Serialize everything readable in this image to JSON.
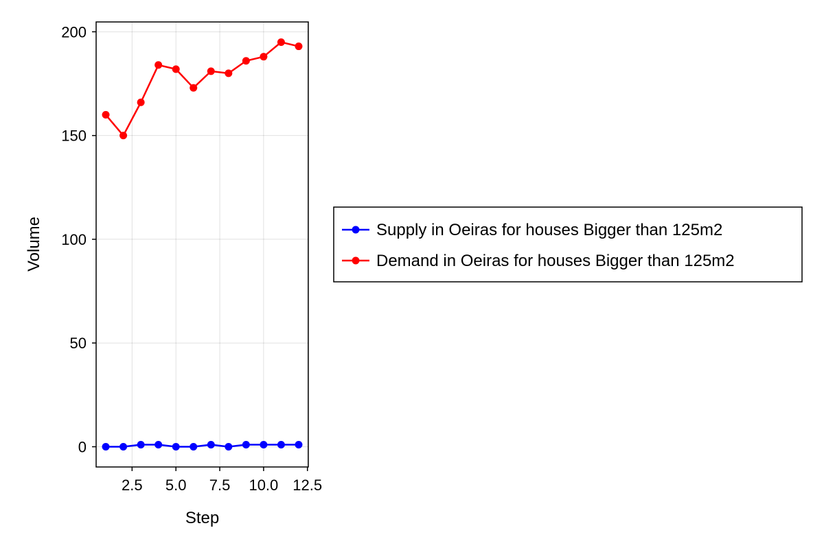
{
  "chart_data": {
    "type": "line",
    "xlabel": "Step",
    "ylabel": "Volume",
    "x": [
      1,
      2,
      3,
      4,
      5,
      6,
      7,
      8,
      9,
      10,
      11,
      12
    ],
    "xlim": [
      0.45,
      12.55
    ],
    "ylim": [
      -9.75,
      204.75
    ],
    "x_ticks": [
      2.5,
      5.0,
      7.5,
      10.0,
      12.5
    ],
    "x_tick_labels": [
      "2.5",
      "5.0",
      "7.5",
      "10.0",
      "12.5"
    ],
    "y_ticks": [
      0,
      50,
      100,
      150,
      200
    ],
    "y_tick_labels": [
      "0",
      "50",
      "100",
      "150",
      "200"
    ],
    "grid": true,
    "legend_position": "right",
    "series": [
      {
        "name": "Supply in Oeiras for houses Bigger than 125m2",
        "color": "#0000ff",
        "values": [
          0,
          0,
          1,
          1,
          0,
          0,
          1,
          0,
          1,
          1,
          1,
          1
        ]
      },
      {
        "name": "Demand in Oeiras for houses Bigger than 125m2",
        "color": "#ff0000",
        "values": [
          160,
          150,
          166,
          184,
          182,
          173,
          181,
          180,
          186,
          188,
          195,
          193
        ]
      }
    ]
  }
}
